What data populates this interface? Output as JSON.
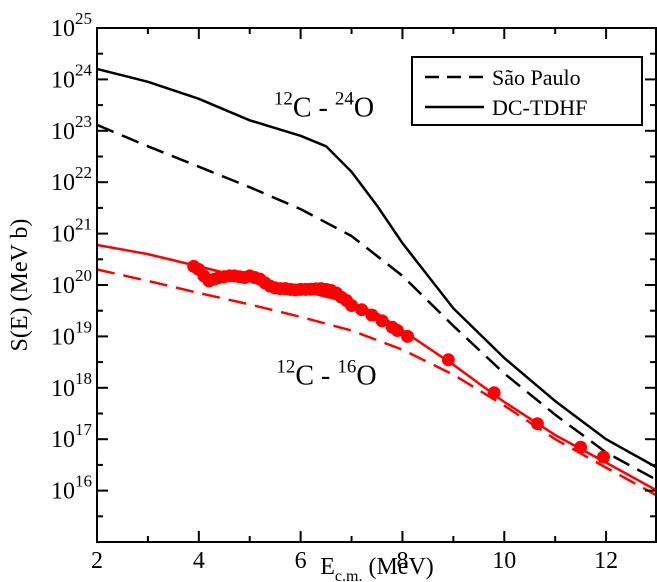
{
  "chart_data": {
    "type": "line",
    "title": "",
    "xlabel_main": "E",
    "xlabel_sub": "c.m.",
    "xlabel_unit": " (MeV)",
    "ylabel": "S(E) (MeV b)",
    "xlim": [
      2,
      13
    ],
    "ylim": [
      1000000000000000.0,
      1e+25
    ],
    "yscale": "log",
    "x_ticks": [
      2,
      4,
      6,
      8,
      10,
      12
    ],
    "y_tick_base": "10",
    "y_tick_exponents": [
      "16",
      "17",
      "18",
      "19",
      "20",
      "21",
      "22",
      "23",
      "24",
      "25"
    ],
    "grid": false,
    "legend": {
      "position": "top-right",
      "entries": [
        {
          "label": "São Paulo",
          "style": "dashed"
        },
        {
          "label": "DC-TDHF",
          "style": "solid"
        }
      ]
    },
    "annotations": [
      {
        "mass_a": "12",
        "sym_a": "C",
        "sep": " - ",
        "mass_b": "24",
        "sym_b": "O",
        "color": "#000000",
        "x": 6.75,
        "y": 3e+23
      },
      {
        "mass_a": "12",
        "sym_a": "C",
        "sep": " - ",
        "mass_b": "16",
        "sym_b": "O",
        "color": "#ff0000",
        "x": 6.8,
        "y": 1.8e+18
      }
    ],
    "series": [
      {
        "system": "C12-O24",
        "model": "DC-TDHF",
        "color": "#000000",
        "style": "solid",
        "x": [
          2.0,
          3.0,
          4.0,
          5.0,
          6.0,
          6.5,
          7.0,
          7.5,
          8.0,
          9.0,
          10.0,
          11.0,
          12.0,
          13.0
        ],
        "y": [
          1.6e+24,
          9e+23,
          4.2e+23,
          1.6e+23,
          8e+22,
          5e+22,
          1.6e+22,
          3.5e+21,
          6.5e+20,
          3.5e+19,
          3.8e+18,
          5.5e+17,
          1e+17,
          2.8e+16
        ]
      },
      {
        "system": "C12-O24",
        "model": "São Paulo",
        "color": "#000000",
        "style": "dashed",
        "x": [
          2.0,
          3.0,
          4.0,
          5.0,
          6.0,
          7.0,
          8.0,
          9.0,
          10.0,
          11.0,
          12.0,
          13.0
        ],
        "y": [
          1.3e+23,
          5e+22,
          2e+22,
          8e+21,
          3e+21,
          9e+20,
          1.5e+20,
          1.6e+19,
          1.9e+18,
          3e+17,
          5.5e+16,
          1.6e+16
        ]
      },
      {
        "system": "C12-O16",
        "model": "DC-TDHF",
        "color": "#ff0000",
        "style": "solid",
        "x": [
          2.0,
          3.0,
          4.0,
          5.0,
          6.0,
          7.0,
          7.5,
          8.0,
          9.0,
          10.0,
          11.0,
          12.0,
          13.0
        ],
        "y": [
          6e+20,
          4e+20,
          2.3e+20,
          1.3e+20,
          7.8e+19,
          4.5e+19,
          2.8e+19,
          1.3e+19,
          2.8e+18,
          5.3e+17,
          1.2e+17,
          3.5e+16,
          1e+16
        ]
      },
      {
        "system": "C12-O16",
        "model": "São Paulo",
        "color": "#ff0000",
        "style": "dashed",
        "x": [
          2.0,
          3.0,
          4.0,
          5.0,
          6.0,
          7.0,
          8.0,
          9.0,
          10.0,
          11.0,
          12.0,
          13.0
        ],
        "y": [
          2e+20,
          1.2e+20,
          7e+19,
          4.2e+19,
          2.4e+19,
          1.3e+19,
          5.5e+18,
          1.8e+18,
          4.5e+17,
          1e+17,
          2.8e+16,
          8000000000000000.0
        ]
      },
      {
        "system": "C12-O16",
        "model": "data",
        "color": "#ff0000",
        "style": "markers",
        "x": [
          3.9,
          4.0,
          4.1,
          4.2,
          4.3,
          4.4,
          4.5,
          4.6,
          4.7,
          4.8,
          4.9,
          5.0,
          5.1,
          5.2,
          5.3,
          5.4,
          5.5,
          5.6,
          5.7,
          5.8,
          5.9,
          6.0,
          6.1,
          6.2,
          6.3,
          6.4,
          6.5,
          6.6,
          6.7,
          6.8,
          6.9,
          7.0,
          7.2,
          7.4,
          7.6,
          7.8,
          7.9,
          8.1,
          8.9,
          9.8,
          10.65,
          11.5,
          11.95
        ],
        "y": [
          2.3e+20,
          2e+20,
          1.5e+20,
          1.2e+20,
          1.3e+20,
          1.4e+20,
          1.45e+20,
          1.5e+20,
          1.5e+20,
          1.45e+20,
          1.4e+20,
          1.5e+20,
          1.4e+20,
          1.3e+20,
          1.1e+20,
          9.5e+19,
          8.8e+19,
          8.5e+19,
          8.5e+19,
          8.2e+19,
          8e+19,
          8.2e+19,
          8.2e+19,
          8.3e+19,
          8.4e+19,
          8.5e+19,
          8.2e+19,
          7.8e+19,
          7e+19,
          5.8e+19,
          5e+19,
          4e+19,
          3.3e+19,
          2.6e+19,
          2e+19,
          1.5e+19,
          1.3e+19,
          1e+19,
          3.5e+18,
          8e+17,
          2e+17,
          7e+16,
          4.5e+16
        ]
      }
    ]
  }
}
